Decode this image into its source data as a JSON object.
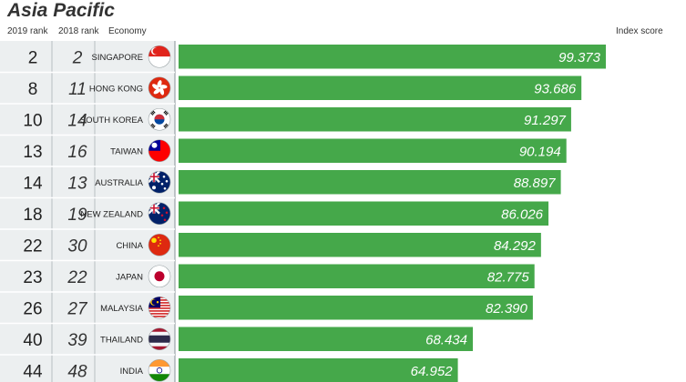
{
  "header": {
    "title": "Asia Pacific",
    "col_2019": "2019 rank",
    "col_2018": "2018 rank",
    "col_economy": "Economy",
    "col_index": "Index score"
  },
  "colors": {
    "bar": "#45a84a",
    "left_panel": "#eceff0",
    "divider": "#b8bfc2"
  },
  "chart_data": {
    "type": "bar",
    "title": "Asia Pacific",
    "xlabel": "Index score",
    "xlim": [
      0,
      100
    ],
    "categories": [
      "SINGAPORE",
      "HONG KONG",
      "SOUTH KOREA",
      "TAIWAN",
      "AUSTRALIA",
      "NEW ZEALAND",
      "CHINA",
      "JAPAN",
      "MALAYSIA",
      "THAILAND",
      "INDIA"
    ],
    "rank_2019": [
      "2",
      "8",
      "10",
      "13",
      "14",
      "18",
      "22",
      "23",
      "26",
      "40",
      "44"
    ],
    "rank_2018": [
      "2",
      "11",
      "14",
      "16",
      "13",
      "19",
      "30",
      "22",
      "27",
      "39",
      "48"
    ],
    "values": [
      99.373,
      93.686,
      91.297,
      90.194,
      88.897,
      86.026,
      84.292,
      82.775,
      82.39,
      68.434,
      64.952
    ],
    "value_labels": [
      "99.373",
      "93.686",
      "91.297",
      "90.194",
      "88.897",
      "86.026",
      "84.292",
      "82.775",
      "82.390",
      "68.434",
      "64.952"
    ],
    "flags": [
      "singapore-flag-icon",
      "hong-kong-flag-icon",
      "south-korea-flag-icon",
      "taiwan-flag-icon",
      "australia-flag-icon",
      "new-zealand-flag-icon",
      "china-flag-icon",
      "japan-flag-icon",
      "malaysia-flag-icon",
      "thailand-flag-icon",
      "india-flag-icon"
    ]
  }
}
